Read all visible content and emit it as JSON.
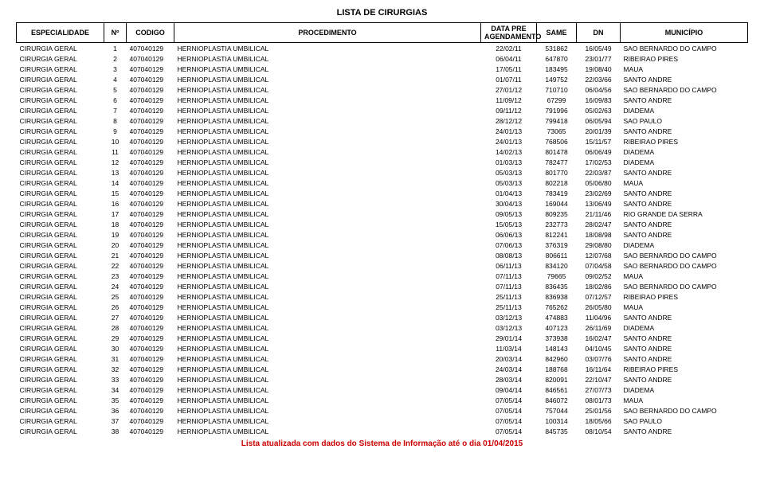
{
  "title": "LISTA DE CIRURGIAS",
  "footer": "Lista atualizada com dados do Sistema de Informação até o dia 01/04/2015",
  "headers": {
    "esp": "ESPECIALIDADE",
    "no": "Nº",
    "cod": "CODIGO",
    "proc": "PROCEDIMENTO",
    "data": "DATA PRE AGENDAMENTO",
    "same": "SAME",
    "dn": "DN",
    "mun": "MUNICÍPIO"
  },
  "defaults": {
    "esp": "CIRURGIA GERAL",
    "cod": "407040129",
    "proc": "HERNIOPLASTIA UMBILICAL"
  },
  "rows": [
    {
      "no": "1",
      "data": "22/02/11",
      "same": "531862",
      "dn": "16/05/49",
      "mun": "SAO BERNARDO DO CAMPO"
    },
    {
      "no": "2",
      "data": "06/04/11",
      "same": "647870",
      "dn": "23/01/77",
      "mun": "RIBEIRAO PIRES"
    },
    {
      "no": "3",
      "data": "17/05/11",
      "same": "183495",
      "dn": "19/08/40",
      "mun": "MAUA"
    },
    {
      "no": "4",
      "data": "01/07/11",
      "same": "149752",
      "dn": "22/03/66",
      "mun": "SANTO ANDRE"
    },
    {
      "no": "5",
      "data": "27/01/12",
      "same": "710710",
      "dn": "06/04/56",
      "mun": "SAO BERNARDO DO CAMPO"
    },
    {
      "no": "6",
      "data": "11/09/12",
      "same": "67299",
      "dn": "16/09/83",
      "mun": "SANTO ANDRE"
    },
    {
      "no": "7",
      "data": "09/11/12",
      "same": "791996",
      "dn": "05/02/63",
      "mun": "DIADEMA"
    },
    {
      "no": "8",
      "data": "28/12/12",
      "same": "799418",
      "dn": "06/05/94",
      "mun": "SAO PAULO"
    },
    {
      "no": "9",
      "data": "24/01/13",
      "same": "73065",
      "dn": "20/01/39",
      "mun": "SANTO ANDRE"
    },
    {
      "no": "10",
      "data": "24/01/13",
      "same": "768506",
      "dn": "15/11/57",
      "mun": "RIBEIRAO PIRES"
    },
    {
      "no": "11",
      "data": "14/02/13",
      "same": "801478",
      "dn": "06/06/49",
      "mun": "DIADEMA"
    },
    {
      "no": "12",
      "data": "01/03/13",
      "same": "782477",
      "dn": "17/02/53",
      "mun": "DIADEMA"
    },
    {
      "no": "13",
      "data": "05/03/13",
      "same": "801770",
      "dn": "22/03/87",
      "mun": "SANTO ANDRE"
    },
    {
      "no": "14",
      "data": "05/03/13",
      "same": "802218",
      "dn": "05/06/80",
      "mun": "MAUA"
    },
    {
      "no": "15",
      "data": "01/04/13",
      "same": "783419",
      "dn": "23/02/69",
      "mun": "SANTO ANDRE"
    },
    {
      "no": "16",
      "data": "30/04/13",
      "same": "169044",
      "dn": "13/06/49",
      "mun": "SANTO ANDRE"
    },
    {
      "no": "17",
      "data": "09/05/13",
      "same": "809235",
      "dn": "21/11/46",
      "mun": "RIO GRANDE DA SERRA"
    },
    {
      "no": "18",
      "data": "15/05/13",
      "same": "232773",
      "dn": "28/02/47",
      "mun": "SANTO ANDRE"
    },
    {
      "no": "19",
      "data": "06/06/13",
      "same": "812241",
      "dn": "18/08/98",
      "mun": "SANTO ANDRE"
    },
    {
      "no": "20",
      "data": "07/06/13",
      "same": "376319",
      "dn": "29/08/80",
      "mun": "DIADEMA"
    },
    {
      "no": "21",
      "data": "08/08/13",
      "same": "806611",
      "dn": "12/07/68",
      "mun": "SAO BERNARDO DO CAMPO"
    },
    {
      "no": "22",
      "data": "06/11/13",
      "same": "834120",
      "dn": "07/04/58",
      "mun": "SAO BERNARDO DO CAMPO"
    },
    {
      "no": "23",
      "data": "07/11/13",
      "same": "79665",
      "dn": "09/02/52",
      "mun": "MAUA"
    },
    {
      "no": "24",
      "data": "07/11/13",
      "same": "836435",
      "dn": "18/02/86",
      "mun": "SAO BERNARDO DO CAMPO"
    },
    {
      "no": "25",
      "data": "25/11/13",
      "same": "836938",
      "dn": "07/12/57",
      "mun": "RIBEIRAO PIRES"
    },
    {
      "no": "26",
      "data": "25/11/13",
      "same": "765262",
      "dn": "26/05/80",
      "mun": "MAUA"
    },
    {
      "no": "27",
      "data": "03/12/13",
      "same": "474883",
      "dn": "11/04/96",
      "mun": "SANTO ANDRE"
    },
    {
      "no": "28",
      "data": "03/12/13",
      "same": "407123",
      "dn": "26/11/69",
      "mun": "DIADEMA"
    },
    {
      "no": "29",
      "data": "29/01/14",
      "same": "373938",
      "dn": "16/02/47",
      "mun": "SANTO ANDRE"
    },
    {
      "no": "30",
      "data": "11/03/14",
      "same": "148143",
      "dn": "04/10/45",
      "mun": "SANTO ANDRE"
    },
    {
      "no": "31",
      "data": "20/03/14",
      "same": "842960",
      "dn": "03/07/76",
      "mun": "SANTO ANDRE"
    },
    {
      "no": "32",
      "data": "24/03/14",
      "same": "188768",
      "dn": "16/11/64",
      "mun": "RIBEIRAO PIRES"
    },
    {
      "no": "33",
      "data": "28/03/14",
      "same": "820091",
      "dn": "22/10/47",
      "mun": "SANTO ANDRE"
    },
    {
      "no": "34",
      "data": "09/04/14",
      "same": "846561",
      "dn": "27/07/73",
      "mun": "DIADEMA"
    },
    {
      "no": "35",
      "data": "07/05/14",
      "same": "846072",
      "dn": "08/01/73",
      "mun": "MAUA"
    },
    {
      "no": "36",
      "data": "07/05/14",
      "same": "757044",
      "dn": "25/01/56",
      "mun": "SAO BERNARDO DO CAMPO"
    },
    {
      "no": "37",
      "data": "07/05/14",
      "same": "100314",
      "dn": "18/05/66",
      "mun": "SAO PAULO"
    },
    {
      "no": "38",
      "data": "07/05/14",
      "same": "845735",
      "dn": "08/10/54",
      "mun": "SANTO ANDRE"
    }
  ]
}
